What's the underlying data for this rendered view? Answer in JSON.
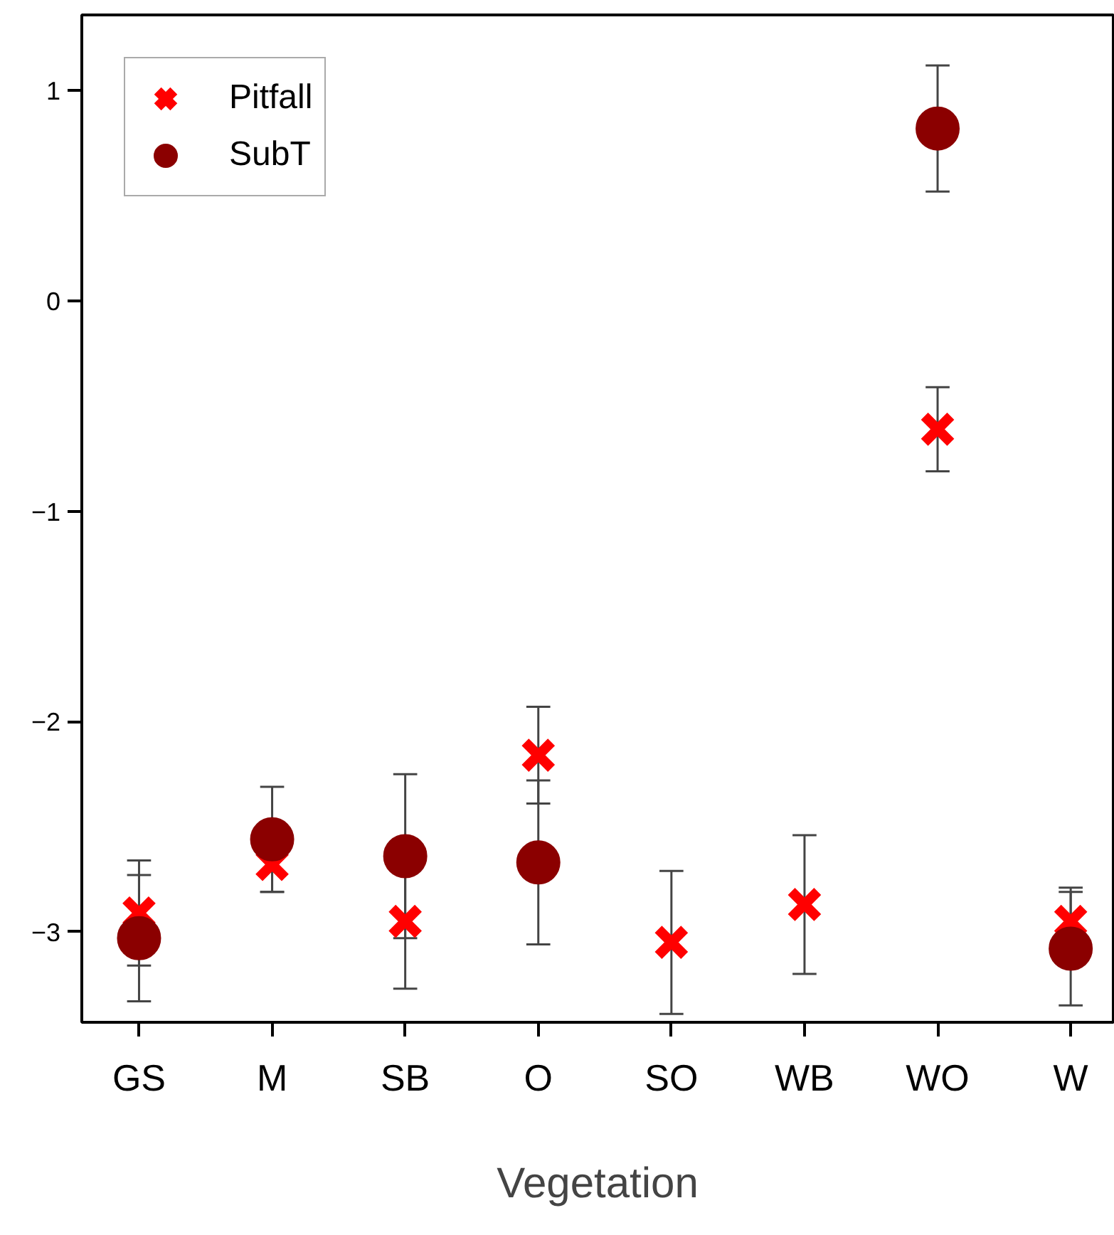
{
  "chart_data": {
    "type": "scatter",
    "xlabel": "Vegetation",
    "categories": [
      "GS",
      "M",
      "SB",
      "O",
      "SO",
      "WB",
      "WO",
      "W"
    ],
    "ylim": [
      -3.43,
      1.36
    ],
    "yticks": [
      -3,
      -2,
      -1,
      0,
      1
    ],
    "grid": false,
    "legend": "top left",
    "series": [
      {
        "name": "Pitfall",
        "color": "#ff0000",
        "marker": "cross",
        "values": [
          -2.91,
          -2.68,
          -2.95,
          -2.16,
          -3.05,
          -2.87,
          -0.61,
          -2.95
        ],
        "errors": [
          0.25,
          0.13,
          0.32,
          0.23,
          0.34,
          0.33,
          0.2,
          0.16
        ]
      },
      {
        "name": "SubT",
        "color": "#8b0000",
        "marker": "circle",
        "values": [
          -3.03,
          -2.56,
          -2.64,
          -2.67,
          null,
          null,
          0.82,
          -3.08
        ],
        "errors": [
          0.3,
          0.25,
          0.39,
          0.39,
          null,
          null,
          0.3,
          0.27
        ]
      }
    ]
  }
}
